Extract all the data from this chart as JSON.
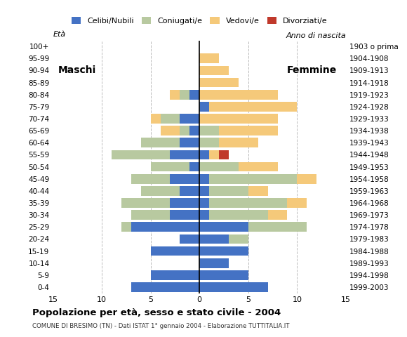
{
  "age_groups": [
    "0-4",
    "5-9",
    "10-14",
    "15-19",
    "20-24",
    "25-29",
    "30-34",
    "35-39",
    "40-44",
    "45-49",
    "50-54",
    "55-59",
    "60-64",
    "65-69",
    "70-74",
    "75-79",
    "80-84",
    "85-89",
    "90-94",
    "95-99",
    "100+"
  ],
  "birth_years": [
    "1999-2003",
    "1994-1998",
    "1989-1993",
    "1984-1988",
    "1979-1983",
    "1974-1978",
    "1969-1973",
    "1964-1968",
    "1959-1963",
    "1954-1958",
    "1949-1953",
    "1944-1948",
    "1939-1943",
    "1934-1938",
    "1929-1933",
    "1924-1928",
    "1919-1923",
    "1914-1918",
    "1909-1913",
    "1904-1908",
    "1903 o prima"
  ],
  "colors": {
    "celibe": "#4472c4",
    "coniugato": "#b8c9a0",
    "vedovo": "#f5c97a",
    "divorziato": "#c0392b"
  },
  "maschi": {
    "celibe": [
      7,
      5,
      0,
      5,
      2,
      7,
      3,
      3,
      2,
      3,
      1,
      3,
      2,
      1,
      2,
      0,
      1,
      0,
      0,
      0,
      0
    ],
    "coniugato": [
      0,
      0,
      0,
      0,
      0,
      1,
      4,
      5,
      4,
      4,
      4,
      6,
      4,
      1,
      2,
      0,
      1,
      0,
      0,
      0,
      0
    ],
    "vedovo": [
      0,
      0,
      0,
      0,
      0,
      0,
      0,
      0,
      0,
      0,
      0,
      0,
      0,
      2,
      1,
      0,
      1,
      0,
      0,
      0,
      0
    ],
    "divorziato": [
      0,
      0,
      0,
      0,
      0,
      0,
      0,
      0,
      0,
      0,
      0,
      0,
      0,
      0,
      0,
      0,
      0,
      0,
      0,
      0,
      0
    ]
  },
  "femmine": {
    "nubile": [
      7,
      5,
      3,
      5,
      3,
      5,
      1,
      1,
      1,
      1,
      0,
      1,
      0,
      0,
      0,
      1,
      0,
      0,
      0,
      0,
      0
    ],
    "coniugata": [
      0,
      0,
      0,
      0,
      2,
      6,
      6,
      8,
      4,
      9,
      4,
      0,
      2,
      2,
      0,
      0,
      0,
      0,
      0,
      0,
      0
    ],
    "vedova": [
      0,
      0,
      0,
      0,
      0,
      0,
      2,
      2,
      2,
      2,
      4,
      1,
      4,
      6,
      8,
      9,
      8,
      4,
      3,
      2,
      0
    ],
    "divorziata": [
      0,
      0,
      0,
      0,
      0,
      0,
      0,
      0,
      0,
      0,
      0,
      1,
      0,
      0,
      0,
      0,
      0,
      0,
      0,
      0,
      0
    ]
  },
  "xlim": 15,
  "title": "Popolazione per età, sesso e stato civile - 2004",
  "subtitle": "COMUNE DI BRESIMO (TN) - Dati ISTAT 1° gennaio 2004 - Elaborazione TUTTITALIA.IT",
  "legend_labels": [
    "Celibi/Nubili",
    "Coniugati/e",
    "Vedovi/e",
    "Divorziati/e"
  ],
  "ylabel_left": "Età",
  "ylabel_right": "Anno di nascita",
  "label_maschi": "Maschi",
  "label_femmine": "Femmine"
}
